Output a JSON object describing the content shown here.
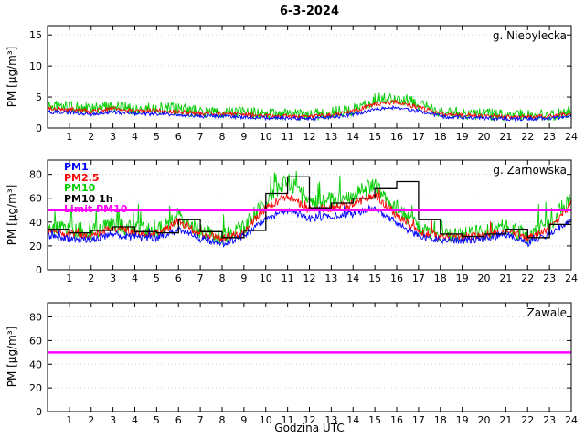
{
  "title": "6-3-2024",
  "xlabel": "Godzina UTC",
  "ylabel": "PM [µg/m³]",
  "legend": {
    "items": [
      {
        "label": "PM1",
        "color": "#0000ff"
      },
      {
        "label": "PM2.5",
        "color": "#ff0000"
      },
      {
        "label": "PM10",
        "color": "#00cc00"
      },
      {
        "label": "PM10 1h",
        "color": "#000000"
      },
      {
        "label": "Limit PM10",
        "color": "#ff00ff"
      }
    ]
  },
  "chart_data": [
    {
      "type": "line",
      "station": "g. Niebylecka",
      "x_range": [
        0,
        24
      ],
      "y_range": [
        0,
        16.5
      ],
      "x_ticks": [
        1,
        2,
        3,
        4,
        5,
        6,
        7,
        8,
        9,
        10,
        11,
        12,
        13,
        14,
        15,
        16,
        17,
        18,
        19,
        20,
        21,
        22,
        23,
        24
      ],
      "y_ticks": [
        0,
        5,
        10,
        15
      ],
      "series": [
        {
          "name": "PM10",
          "kind": "noisy",
          "color": "#00cc00",
          "noise": 1.0,
          "spike": 0,
          "values": [
            3.6,
            3.4,
            3.0,
            3.6,
            3.0,
            3.2,
            3.0,
            2.6,
            2.6,
            2.5,
            2.2,
            2.2,
            2.1,
            2.4,
            3.0,
            4.6,
            5.0,
            3.8,
            2.6,
            2.4,
            2.2,
            2.1,
            2.1,
            2.2,
            2.6
          ]
        },
        {
          "name": "PM2.5",
          "kind": "noisy",
          "color": "#ff0000",
          "noise": 0.35,
          "spike": 0,
          "values": [
            3.1,
            3.0,
            2.7,
            3.1,
            2.7,
            2.8,
            2.6,
            2.3,
            2.3,
            2.2,
            1.9,
            1.9,
            1.8,
            2.1,
            2.7,
            3.9,
            4.2,
            3.3,
            2.3,
            2.1,
            1.9,
            1.8,
            1.8,
            1.9,
            2.3
          ]
        },
        {
          "name": "PM1",
          "kind": "noisy",
          "color": "#0000ff",
          "noise": 0.3,
          "spike": 0,
          "values": [
            2.6,
            2.5,
            2.2,
            2.6,
            2.2,
            2.3,
            2.2,
            1.9,
            1.9,
            1.8,
            1.6,
            1.6,
            1.5,
            1.7,
            2.2,
            3.0,
            3.3,
            2.7,
            1.9,
            1.7,
            1.6,
            1.5,
            1.5,
            1.6,
            1.9
          ]
        }
      ]
    },
    {
      "type": "line",
      "station": "g. Zarnowska",
      "x_range": [
        0,
        24
      ],
      "y_range": [
        0,
        92
      ],
      "x_ticks": [
        1,
        2,
        3,
        4,
        5,
        6,
        7,
        8,
        9,
        10,
        11,
        12,
        13,
        14,
        15,
        16,
        17,
        18,
        19,
        20,
        21,
        22,
        23,
        24
      ],
      "y_ticks": [
        0,
        20,
        40,
        60,
        80
      ],
      "limit_value": 50,
      "series": [
        {
          "name": "PM10",
          "kind": "noisy",
          "color": "#00cc00",
          "noise": 7,
          "spike": 0.05,
          "values": [
            36,
            33,
            32,
            38,
            34,
            33,
            45,
            33,
            28,
            35,
            60,
            75,
            56,
            58,
            62,
            72,
            52,
            35,
            30,
            29,
            31,
            36,
            28,
            38,
            62
          ]
        },
        {
          "name": "PM2.5",
          "kind": "noisy",
          "color": "#ff0000",
          "noise": 3.5,
          "spike": 0.02,
          "values": [
            33,
            30,
            29,
            35,
            31,
            30,
            41,
            30,
            26,
            32,
            52,
            62,
            50,
            52,
            55,
            63,
            46,
            32,
            28,
            27,
            29,
            33,
            26,
            35,
            55
          ]
        },
        {
          "name": "PM1",
          "kind": "noisy",
          "color": "#0000ff",
          "noise": 3,
          "spike": 0.02,
          "values": [
            28,
            26,
            25,
            30,
            27,
            26,
            34,
            26,
            22,
            28,
            42,
            50,
            43,
            45,
            47,
            52,
            39,
            28,
            25,
            24,
            26,
            30,
            22,
            30,
            42
          ]
        },
        {
          "name": "PM10 1h",
          "kind": "step",
          "color": "#000000",
          "width": 1.3,
          "values": [
            34,
            31,
            33,
            36,
            32,
            31,
            42,
            32,
            27,
            33,
            64,
            78,
            52,
            56,
            60,
            68,
            74,
            42,
            30,
            28,
            30,
            34,
            27,
            38
          ]
        },
        {
          "name": "Limit PM10",
          "kind": "constant",
          "color": "#ff00ff",
          "width": 2.5,
          "value": 50
        }
      ]
    },
    {
      "type": "line",
      "station": "Zawale",
      "x_range": [
        0,
        24
      ],
      "y_range": [
        0,
        92
      ],
      "x_ticks": [
        1,
        2,
        3,
        4,
        5,
        6,
        7,
        8,
        9,
        10,
        11,
        12,
        13,
        14,
        15,
        16,
        17,
        18,
        19,
        20,
        21,
        22,
        23,
        24
      ],
      "y_ticks": [
        0,
        20,
        40,
        60,
        80
      ],
      "limit_value": 50,
      "series": [
        {
          "name": "Limit PM10",
          "kind": "constant",
          "color": "#ff00ff",
          "width": 2.5,
          "value": 50
        }
      ]
    }
  ]
}
